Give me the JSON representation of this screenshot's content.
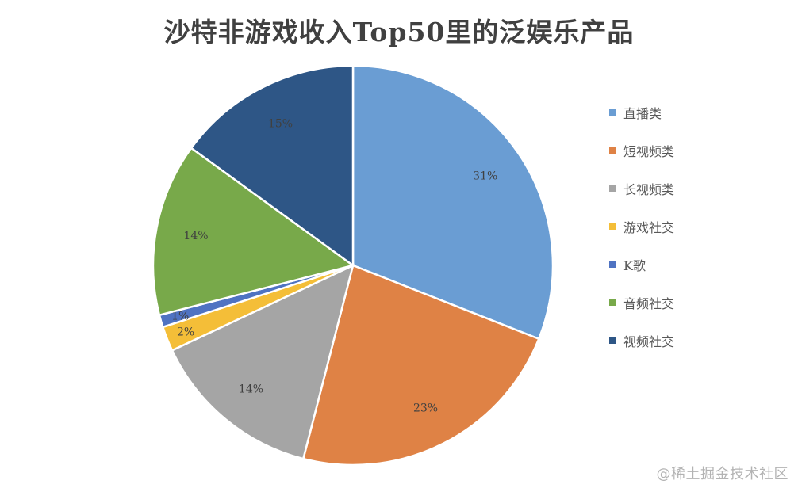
{
  "chart_data": {
    "type": "pie",
    "title": "沙特非游戏收入Top50里的泛娱乐产品",
    "legend_position": "right",
    "slices": [
      {
        "label": "直播类",
        "value": 31,
        "display": "31%",
        "color": "#6A9DD3"
      },
      {
        "label": "短视频类",
        "value": 23,
        "display": "23%",
        "color": "#DF8245"
      },
      {
        "label": "长视频类",
        "value": 14,
        "display": "14%",
        "color": "#A5A5A5"
      },
      {
        "label": "游戏社交",
        "value": 2,
        "display": "2%",
        "color": "#F4BE38"
      },
      {
        "label": "K歌",
        "value": 1,
        "display": "1%",
        "color": "#4F73C2"
      },
      {
        "label": "音频社交",
        "value": 14,
        "display": "14%",
        "color": "#78A94A"
      },
      {
        "label": "视频社交",
        "value": 15,
        "display": "15%",
        "color": "#2E5686"
      }
    ]
  },
  "watermark": "@稀土掘金技术社区"
}
